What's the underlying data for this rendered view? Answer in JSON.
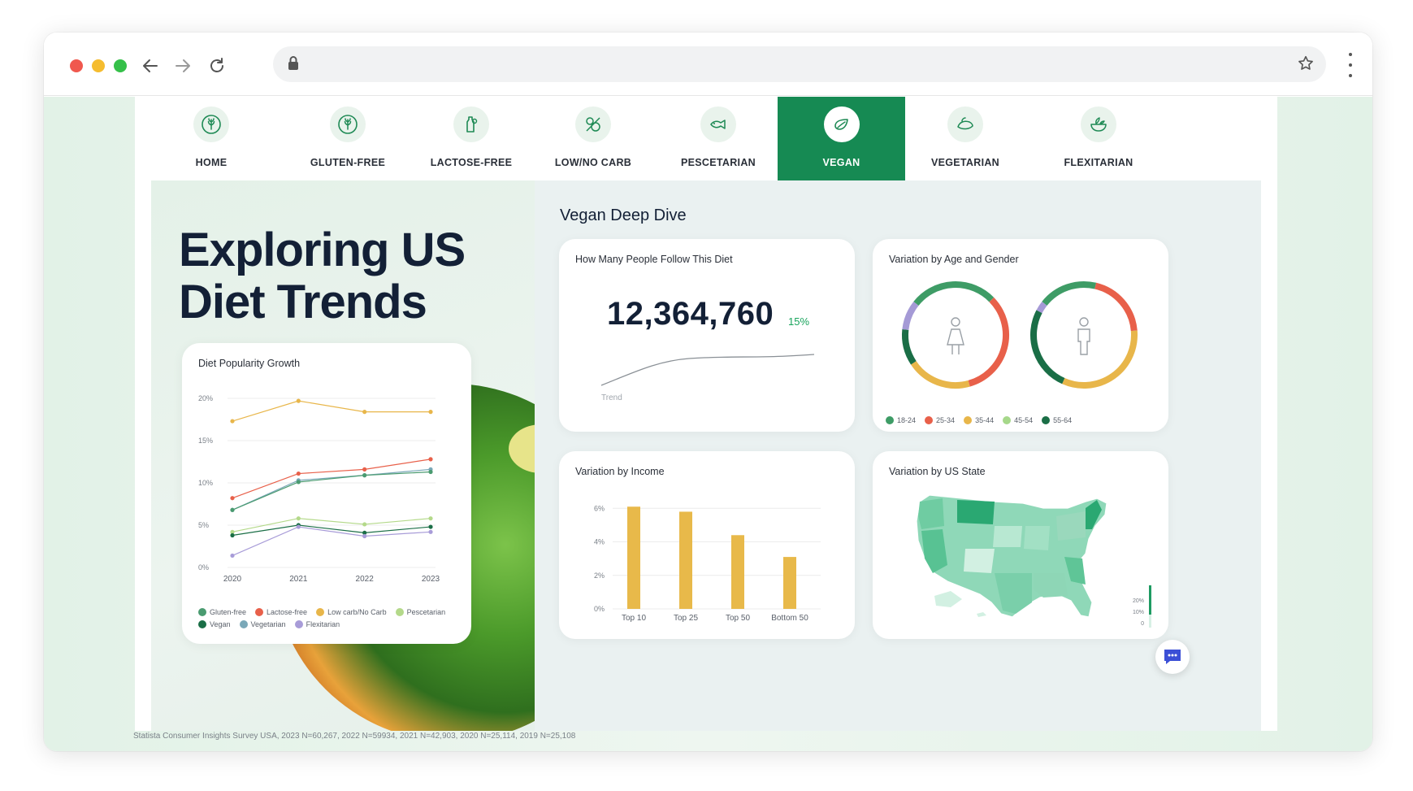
{
  "tabs": [
    {
      "label": "HOME",
      "icon": "wheat-icon"
    },
    {
      "label": "GLUTEN-FREE",
      "icon": "wheat-icon"
    },
    {
      "label": "LACTOSE-FREE",
      "icon": "bottle-icon"
    },
    {
      "label": "LOW/NO CARB",
      "icon": "no-carb-icon"
    },
    {
      "label": "PESCETARIAN",
      "icon": "fish-icon"
    },
    {
      "label": "VEGAN",
      "icon": "leaf-icon",
      "active": true
    },
    {
      "label": "VEGETARIAN",
      "icon": "vegetable-icon"
    },
    {
      "label": "FLEXITARIAN",
      "icon": "salad-icon"
    }
  ],
  "hero": {
    "title_line1": "Exploring US",
    "title_line2": "Diet Trends"
  },
  "growth": {
    "title": "Diet Popularity Growth",
    "legend": [
      {
        "name": "Gluten-free",
        "color": "#4a9b70"
      },
      {
        "name": "Lactose-free",
        "color": "#e8604a"
      },
      {
        "name": "Low carb/No Carb",
        "color": "#e8b64a"
      },
      {
        "name": "Pescetarian",
        "color": "#b4d98a"
      },
      {
        "name": "Vegan",
        "color": "#1a6e46"
      },
      {
        "name": "Vegetarian",
        "color": "#7aa8b8"
      },
      {
        "name": "Flexitarian",
        "color": "#a89cd8"
      }
    ]
  },
  "dash": {
    "title": "Vegan Deep Dive"
  },
  "followers": {
    "title": "How Many People Follow This Diet",
    "value": "12,364,760",
    "change": "15%",
    "trend_label": "Trend"
  },
  "age_gender": {
    "title": "Variation by Age and Gender",
    "legend": [
      {
        "name": "18-24",
        "color": "#3e9c66"
      },
      {
        "name": "25-34",
        "color": "#e8604a"
      },
      {
        "name": "35-44",
        "color": "#e8b64a"
      },
      {
        "name": "45-54",
        "color": "#a6d88a"
      },
      {
        "name": "55-64",
        "color": "#1a6e46"
      }
    ]
  },
  "income": {
    "title": "Variation by Income"
  },
  "state": {
    "title": "Variation by US State",
    "scale_labels": [
      "20%",
      "10%",
      "0"
    ]
  },
  "footer": "Statista Consumer Insights Survey USA, 2023 N=60,267, 2022 N=59934, 2021 N=42,903, 2020 N=25,114, 2019 N=25,108",
  "chart_data": [
    {
      "type": "line",
      "title": "Diet Popularity Growth",
      "x": [
        "2020",
        "2021",
        "2022",
        "2023"
      ],
      "yticks": [
        "0%",
        "5%",
        "10%",
        "15%",
        "20%"
      ],
      "ylim": [
        0,
        20
      ],
      "series": [
        {
          "name": "Low carb/No Carb",
          "color": "#e8b64a",
          "values": [
            17.3,
            19.7,
            18.4,
            18.4
          ]
        },
        {
          "name": "Lactose-free",
          "color": "#e8604a",
          "values": [
            8.2,
            11.1,
            11.6,
            12.8
          ]
        },
        {
          "name": "Vegetarian",
          "color": "#7aa8b8",
          "values": [
            6.8,
            10.3,
            10.9,
            11.6
          ]
        },
        {
          "name": "Gluten-free",
          "color": "#4a9b70",
          "values": [
            6.8,
            10.1,
            10.9,
            11.3
          ]
        },
        {
          "name": "Pescetarian",
          "color": "#b4d98a",
          "values": [
            4.2,
            5.8,
            5.1,
            5.8
          ]
        },
        {
          "name": "Vegan",
          "color": "#1a6e46",
          "values": [
            3.8,
            5.0,
            4.1,
            4.8
          ]
        },
        {
          "name": "Flexitarian",
          "color": "#a89cd8",
          "values": [
            1.4,
            4.8,
            3.7,
            4.2
          ]
        }
      ]
    },
    {
      "type": "bar",
      "title": "Variation by Income",
      "categories": [
        "Top 10",
        "Top 25",
        "Top 50",
        "Bottom 50"
      ],
      "values": [
        6.1,
        5.8,
        4.4,
        3.1
      ],
      "yticks": [
        "0%",
        "2%",
        "4%",
        "6%"
      ],
      "ylim": [
        0,
        6.5
      ],
      "color": "#e8b94a"
    },
    {
      "type": "pie",
      "title": "Variation by Age and Gender",
      "donuts": [
        {
          "name": "female",
          "slices": [
            {
              "label": "18-24",
              "value": 27,
              "color": "#3e9c66"
            },
            {
              "label": "25-34",
              "value": 33,
              "color": "#e8604a"
            },
            {
              "label": "35-44",
              "value": 20,
              "color": "#e8b64a"
            },
            {
              "label": "55-64",
              "value": 11,
              "color": "#1a6e46"
            },
            {
              "label": "45-54",
              "value": 9,
              "color": "#a59ad6"
            }
          ]
        },
        {
          "name": "male",
          "slices": [
            {
              "label": "18-24",
              "value": 18,
              "color": "#3e9c66"
            },
            {
              "label": "25-34",
              "value": 20,
              "color": "#e8604a"
            },
            {
              "label": "35-44",
              "value": 33,
              "color": "#e8b64a"
            },
            {
              "label": "55-64",
              "value": 26,
              "color": "#1a6e46"
            },
            {
              "label": "45-54",
              "value": 3,
              "color": "#a59ad6"
            }
          ]
        }
      ]
    }
  ]
}
